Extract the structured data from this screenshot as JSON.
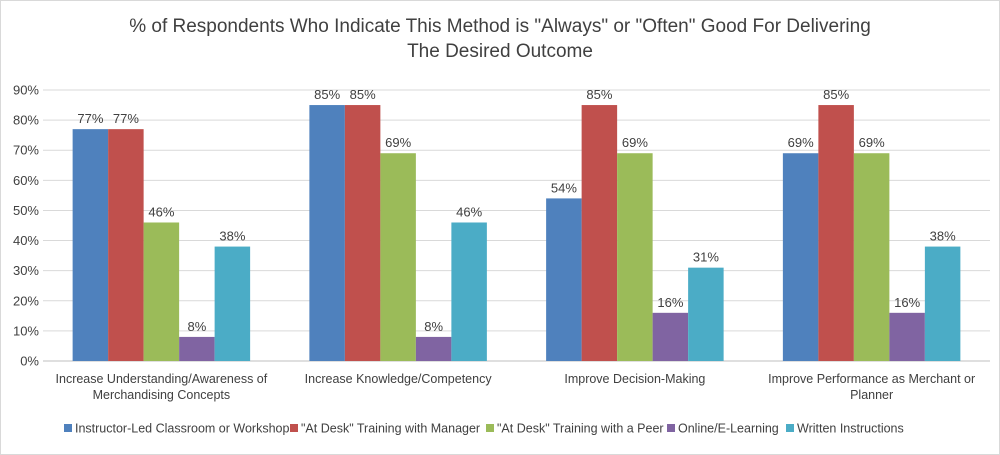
{
  "chart_data": {
    "type": "bar",
    "title_line1": "% of Respondents Who Indicate This Method is \"Always\" or \"Often\" Good For Delivering",
    "title_line2": "The Desired Outcome",
    "categories": [
      [
        "Increase Understanding/Awareness of",
        "Merchandising Concepts"
      ],
      [
        "Increase Knowledge/Competency"
      ],
      [
        "Improve Decision-Making"
      ],
      [
        "Improve Performance as Merchant or",
        "Planner"
      ]
    ],
    "series": [
      {
        "name": "Instructor-Led Classroom or Workshop",
        "color": "#4f81bd",
        "values": [
          77,
          85,
          54,
          69
        ]
      },
      {
        "name": "\"At Desk\" Training with Manager",
        "color": "#c0504d",
        "values": [
          77,
          85,
          85,
          85
        ]
      },
      {
        "name": "\"At Desk\" Training with a Peer",
        "color": "#9bbb59",
        "values": [
          46,
          69,
          69,
          69
        ]
      },
      {
        "name": "Online/E-Learning",
        "color": "#8064a2",
        "values": [
          8,
          8,
          16,
          16
        ]
      },
      {
        "name": "Written Instructions",
        "color": "#4bacc6",
        "values": [
          38,
          46,
          31,
          38
        ]
      }
    ],
    "ylim": [
      0,
      90
    ],
    "yticks": [
      "0%",
      "10%",
      "20%",
      "30%",
      "40%",
      "50%",
      "60%",
      "70%",
      "80%",
      "90%"
    ],
    "value_suffix": "%",
    "grid": true,
    "legend_position": "bottom"
  }
}
